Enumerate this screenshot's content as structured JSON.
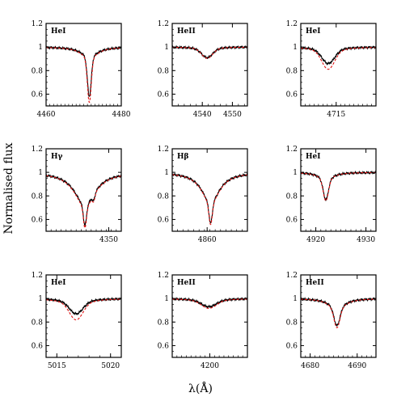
{
  "figure": {
    "ylabel": "Normalised flux",
    "xlabel": "λ(Å)"
  },
  "chart_data": [
    {
      "type": "line",
      "label": "HeI",
      "xlim": [
        4460,
        4480
      ],
      "ylim": [
        0.5,
        1.2
      ],
      "xticks": [
        "4460",
        "4480"
      ],
      "xtick_values": [
        4460,
        4480
      ],
      "yticks": [
        "0.6",
        "0.8",
        "1",
        "1.2"
      ],
      "ytick_values": [
        0.6,
        0.8,
        1.0,
        1.2
      ],
      "lines": [
        {
          "center": 4471.5,
          "depth": 0.33,
          "width": 0.5,
          "wings": 0.09,
          "wingwidth": 2.5
        }
      ],
      "model_scale": 1.12
    },
    {
      "type": "line",
      "label": "HeII",
      "xlim": [
        4530,
        4555
      ],
      "ylim": [
        0.5,
        1.2
      ],
      "xticks": [
        "4540",
        "4550"
      ],
      "xtick_values": [
        4540,
        4550
      ],
      "yticks": [
        "0.6",
        "0.8",
        "1",
        "1.2"
      ],
      "ytick_values": [
        0.6,
        0.8,
        1.0,
        1.2
      ],
      "lines": [
        {
          "center": 4541.6,
          "depth": 0.07,
          "width": 1.8,
          "wings": 0.02,
          "wingwidth": 4.0
        }
      ],
      "model_scale": 1.05
    },
    {
      "type": "line",
      "label": "HeI",
      "xlim": [
        4707,
        4724
      ],
      "ylim": [
        0.5,
        1.2
      ],
      "xticks": [
        "4715"
      ],
      "xtick_values": [
        4715
      ],
      "yticks": [
        "0.6",
        "0.8",
        "1",
        "1.2"
      ],
      "ytick_values": [
        0.6,
        0.8,
        1.0,
        1.2
      ],
      "lines": [
        {
          "center": 4713.2,
          "depth": 0.11,
          "width": 1.4,
          "wings": 0.03,
          "wingwidth": 3.5
        }
      ],
      "model_scale": 1.35
    },
    {
      "type": "line",
      "label": "Hγ",
      "xlim": [
        4325,
        4355
      ],
      "ylim": [
        0.5,
        1.2
      ],
      "xticks": [
        "4350"
      ],
      "xtick_values": [
        4350
      ],
      "yticks": [
        "0.6",
        "0.8",
        "1",
        "1.2"
      ],
      "ytick_values": [
        0.6,
        0.8,
        1.0,
        1.2
      ],
      "lines": [
        {
          "center": 4340.5,
          "depth": 0.17,
          "width": 0.6,
          "wings": 0.28,
          "wingwidth": 5.0
        },
        {
          "center": 4344.0,
          "depth": 0.05,
          "width": 0.5,
          "wings": 0,
          "wingwidth": 1.0
        }
      ],
      "model_scale": 1.05
    },
    {
      "type": "line",
      "label": "Hβ",
      "xlim": [
        4847,
        4875
      ],
      "ylim": [
        0.5,
        1.2
      ],
      "xticks": [
        "4860"
      ],
      "xtick_values": [
        4860
      ],
      "yticks": [
        "0.6",
        "0.8",
        "1",
        "1.2"
      ],
      "ytick_values": [
        0.6,
        0.8,
        1.0,
        1.2
      ],
      "lines": [
        {
          "center": 4861.3,
          "depth": 0.17,
          "width": 0.6,
          "wings": 0.26,
          "wingwidth": 4.0
        }
      ],
      "model_scale": 1.03
    },
    {
      "type": "line",
      "label": "HeI",
      "xlim": [
        4917,
        4932
      ],
      "ylim": [
        0.5,
        1.2
      ],
      "xticks": [
        "4920",
        "4930"
      ],
      "xtick_values": [
        4920,
        4930
      ],
      "yticks": [
        "0.6",
        "0.8",
        "1",
        "1.2"
      ],
      "ytick_values": [
        0.6,
        0.8,
        1.0,
        1.2
      ],
      "lines": [
        {
          "center": 4922.0,
          "depth": 0.16,
          "width": 0.5,
          "wings": 0.07,
          "wingwidth": 1.6
        }
      ],
      "model_scale": 1.05
    },
    {
      "type": "line",
      "label": "HeI",
      "xlim": [
        5014,
        5021
      ],
      "ylim": [
        0.5,
        1.2
      ],
      "xticks": [
        "5015",
        "5020"
      ],
      "xtick_values": [
        5015,
        5020
      ],
      "yticks": [
        "0.6",
        "0.8",
        "1",
        "1.2"
      ],
      "ytick_values": [
        0.6,
        0.8,
        1.0,
        1.2
      ],
      "lines": [
        {
          "center": 5016.8,
          "depth": 0.09,
          "width": 0.6,
          "wings": 0.04,
          "wingwidth": 1.4
        }
      ],
      "model_scale": 1.4
    },
    {
      "type": "line",
      "label": "HeII",
      "xlim": [
        4192,
        4208
      ],
      "ylim": [
        0.5,
        1.2
      ],
      "xticks": [
        "4200"
      ],
      "xtick_values": [
        4200
      ],
      "yticks": [
        "0.6",
        "0.8",
        "1",
        "1.2"
      ],
      "ytick_values": [
        0.6,
        0.8,
        1.0,
        1.2
      ],
      "lines": [
        {
          "center": 4199.8,
          "depth": 0.05,
          "width": 1.5,
          "wings": 0.02,
          "wingwidth": 4.0
        }
      ],
      "model_scale": 1.2
    },
    {
      "type": "line",
      "label": "HeII",
      "xlim": [
        4678,
        4694
      ],
      "ylim": [
        0.5,
        1.2
      ],
      "xticks": [
        "4680",
        "4690"
      ],
      "xtick_values": [
        4680,
        4690
      ],
      "yticks": [
        "0.6",
        "0.8",
        "1",
        "1.2"
      ],
      "ytick_values": [
        0.6,
        0.8,
        1.0,
        1.2
      ],
      "lines": [
        {
          "center": 4685.7,
          "depth": 0.14,
          "width": 0.6,
          "wings": 0.09,
          "wingwidth": 2.0
        }
      ],
      "model_scale": 1.08
    }
  ]
}
